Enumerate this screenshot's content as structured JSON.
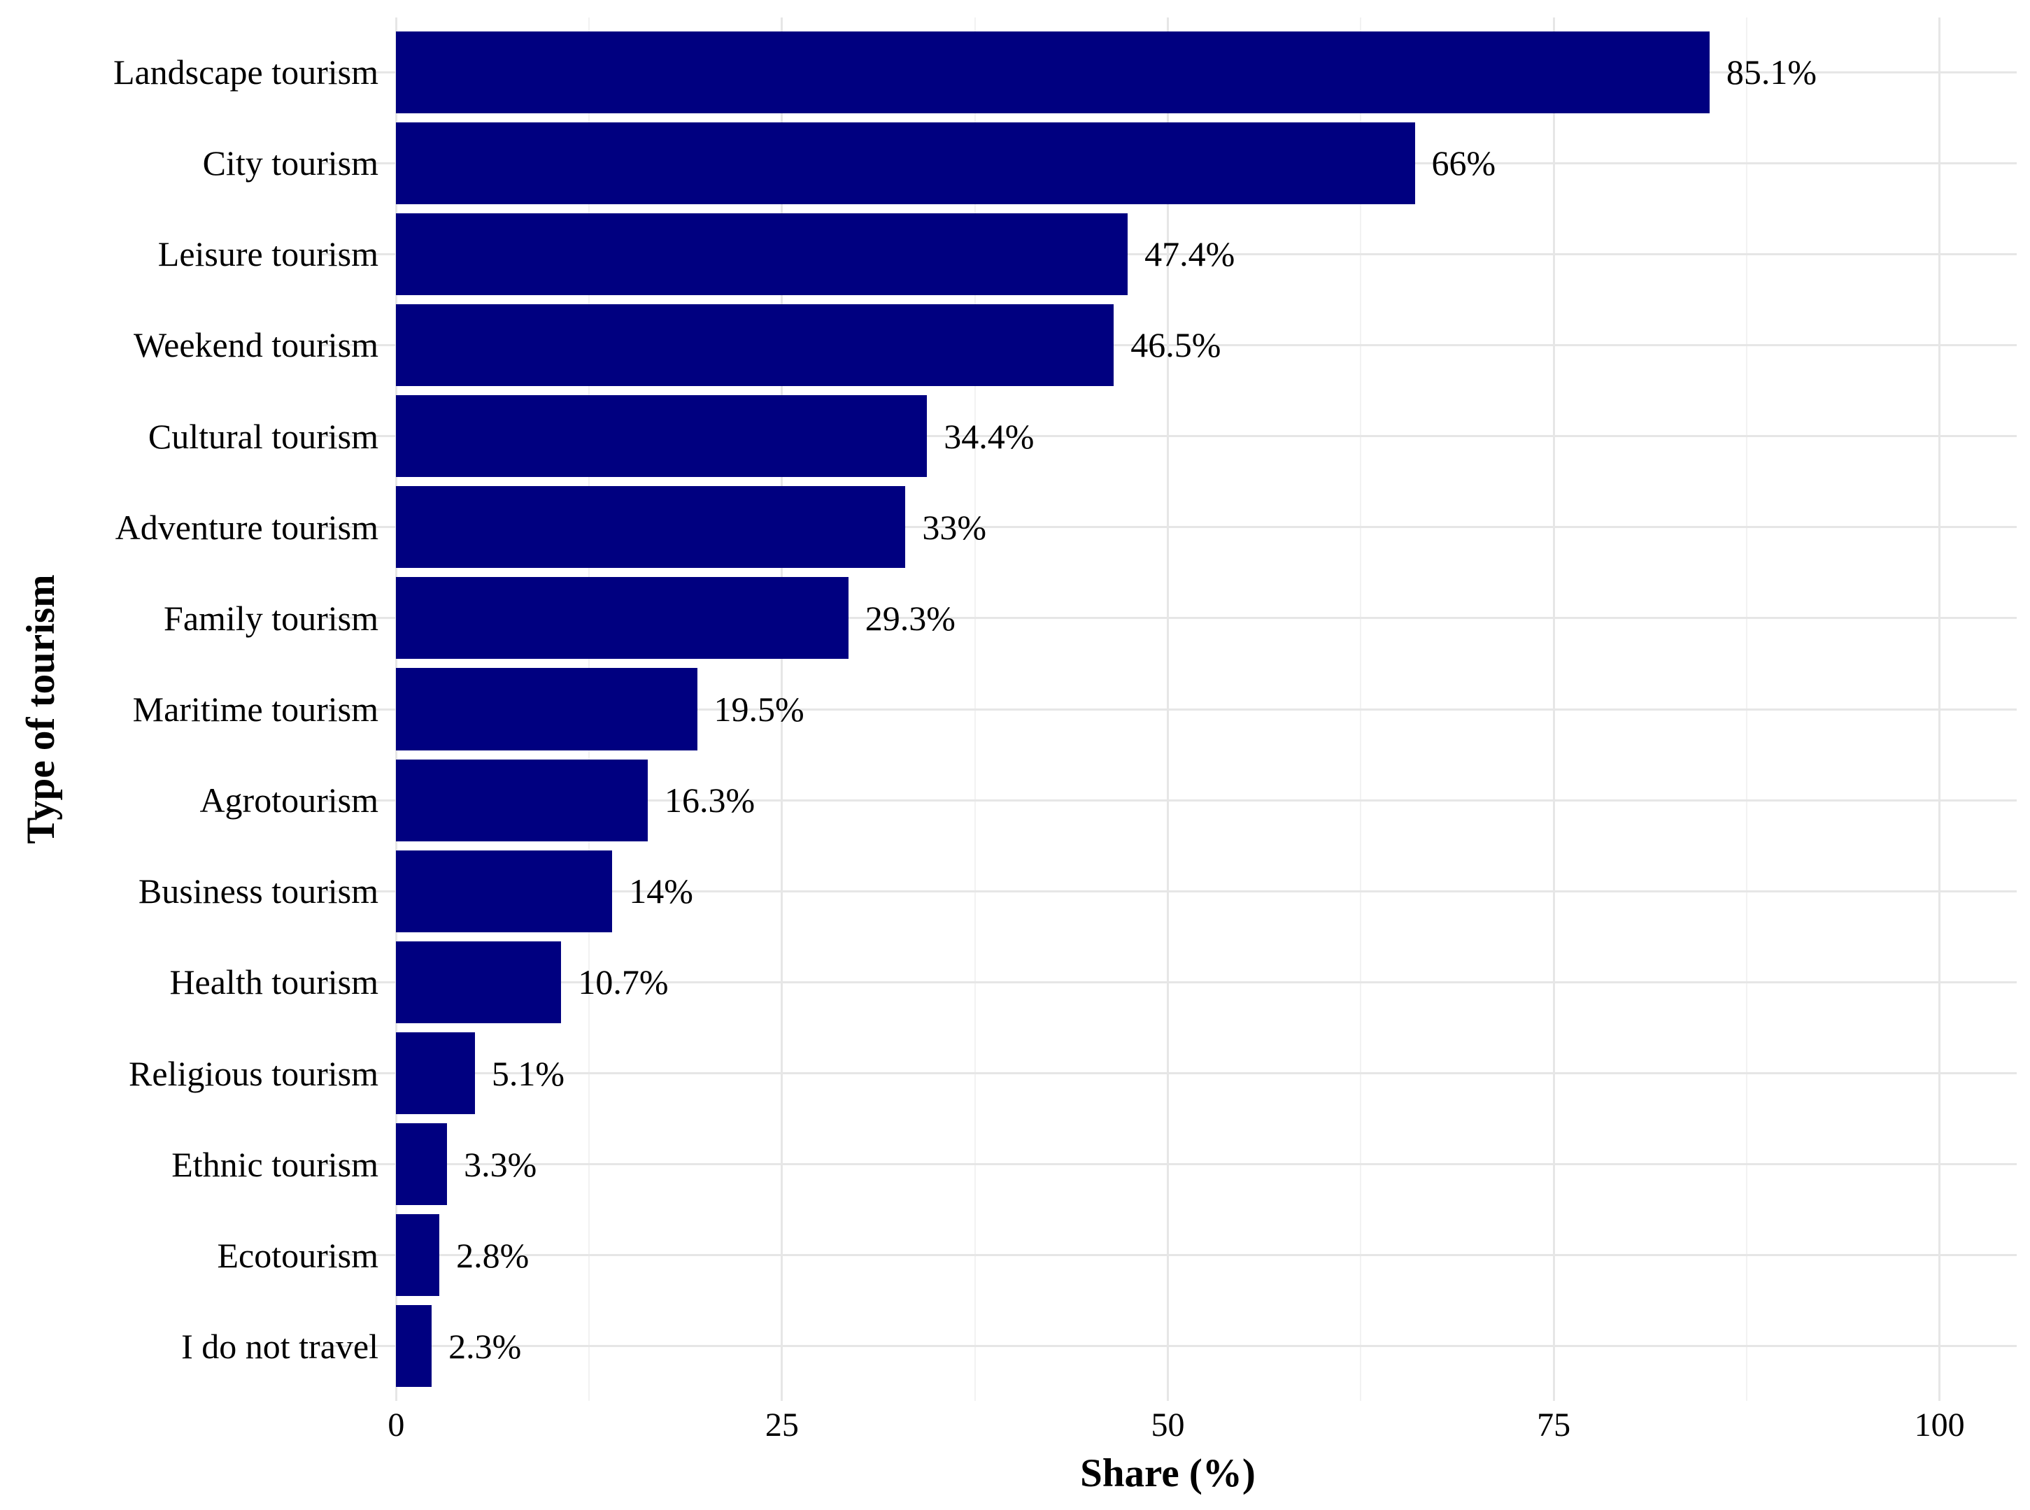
{
  "chart_data": {
    "type": "bar",
    "orientation": "horizontal",
    "title": "",
    "xlabel": "Share (%)",
    "ylabel": "Type of tourism",
    "categories": [
      "Landscape tourism",
      "City tourism",
      "Leisure tourism",
      "Weekend tourism",
      "Cultural tourism",
      "Adventure tourism",
      "Family tourism",
      "Maritime tourism",
      "Agrotourism",
      "Business tourism",
      "Health tourism",
      "Religious tourism",
      "Ethnic tourism",
      "Ecotourism",
      "I do not travel"
    ],
    "values": [
      85.1,
      66,
      47.4,
      46.5,
      34.4,
      33,
      29.3,
      19.5,
      16.3,
      14,
      10.7,
      5.1,
      3.3,
      2.8,
      2.3
    ],
    "value_labels": [
      "85.1%",
      "66%",
      "47.4%",
      "46.5%",
      "34.4%",
      "33%",
      "29.3%",
      "19.5%",
      "16.3%",
      "14%",
      "10.7%",
      "5.1%",
      "3.3%",
      "2.8%",
      "2.3%"
    ],
    "x_tick_values": [
      0,
      25,
      50,
      75,
      100
    ],
    "x_tick_labels": [
      "0",
      "25",
      "50",
      "75",
      "100"
    ],
    "x_minor_tick_values": [
      12.5,
      37.5,
      62.5,
      87.5
    ],
    "xlim": [
      -5,
      105
    ],
    "ylim_categories": [
      0.4,
      15.6
    ],
    "bar_color": "#000080",
    "grid_major_color": "#E6E6E6",
    "grid_minor_color": "#F2F2F2",
    "text_color": "#000000",
    "background_color": "#FFFFFF",
    "legend_position": "none",
    "grid": "on"
  }
}
